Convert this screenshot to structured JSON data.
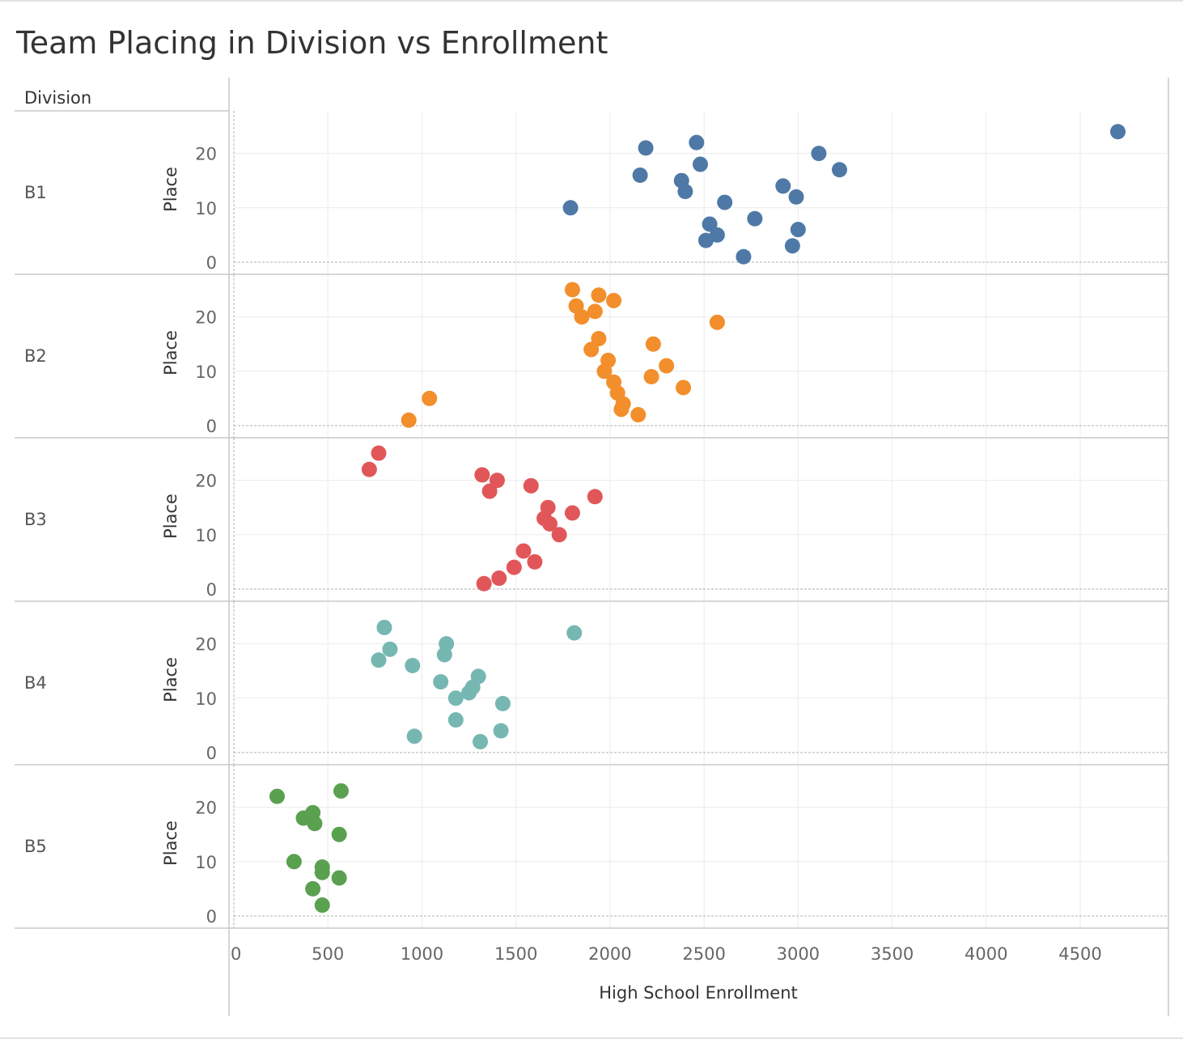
{
  "chart_data": {
    "type": "scatter",
    "title": "Team Placing in Division vs Enrollment",
    "row_header": "Division",
    "xlabel": "High School Enrollment",
    "ylabel": "Place",
    "xlim": [
      0,
      4950
    ],
    "ylim": [
      0,
      26
    ],
    "x_ticks": [
      "0",
      "500",
      "1000",
      "1500",
      "2000",
      "2500",
      "3000",
      "3500",
      "4000",
      "4500"
    ],
    "y_ticks": [
      "0",
      "10",
      "20"
    ],
    "grid": true,
    "panels": [
      {
        "division": "B1",
        "color": "#4e79a7",
        "points": [
          [
            1790,
            10
          ],
          [
            2160,
            16
          ],
          [
            2190,
            21
          ],
          [
            2380,
            15
          ],
          [
            2400,
            13
          ],
          [
            2460,
            22
          ],
          [
            2480,
            18
          ],
          [
            2510,
            4
          ],
          [
            2530,
            7
          ],
          [
            2570,
            5
          ],
          [
            2610,
            11
          ],
          [
            2710,
            1
          ],
          [
            2770,
            8
          ],
          [
            2920,
            14
          ],
          [
            2970,
            3
          ],
          [
            2990,
            12
          ],
          [
            3000,
            6
          ],
          [
            3110,
            20
          ],
          [
            3220,
            17
          ],
          [
            4700,
            24
          ]
        ]
      },
      {
        "division": "B2",
        "color": "#f28e2b",
        "points": [
          [
            930,
            1
          ],
          [
            1040,
            5
          ],
          [
            1800,
            25
          ],
          [
            1820,
            22
          ],
          [
            1850,
            20
          ],
          [
            1900,
            14
          ],
          [
            1920,
            21
          ],
          [
            1940,
            24
          ],
          [
            1940,
            16
          ],
          [
            1970,
            10
          ],
          [
            1990,
            12
          ],
          [
            2020,
            23
          ],
          [
            2020,
            8
          ],
          [
            2040,
            6
          ],
          [
            2060,
            3
          ],
          [
            2070,
            4
          ],
          [
            2150,
            2
          ],
          [
            2220,
            9
          ],
          [
            2230,
            15
          ],
          [
            2300,
            11
          ],
          [
            2390,
            7
          ],
          [
            2570,
            19
          ]
        ]
      },
      {
        "division": "B3",
        "color": "#e15759",
        "points": [
          [
            720,
            22
          ],
          [
            770,
            25
          ],
          [
            1320,
            21
          ],
          [
            1330,
            1
          ],
          [
            1360,
            18
          ],
          [
            1400,
            20
          ],
          [
            1410,
            2
          ],
          [
            1490,
            4
          ],
          [
            1540,
            7
          ],
          [
            1580,
            19
          ],
          [
            1600,
            5
          ],
          [
            1650,
            13
          ],
          [
            1670,
            15
          ],
          [
            1680,
            12
          ],
          [
            1730,
            10
          ],
          [
            1800,
            14
          ],
          [
            1920,
            17
          ]
        ]
      },
      {
        "division": "B4",
        "color": "#76b7b2",
        "points": [
          [
            770,
            17
          ],
          [
            800,
            23
          ],
          [
            830,
            19
          ],
          [
            950,
            16
          ],
          [
            960,
            3
          ],
          [
            1100,
            13
          ],
          [
            1120,
            18
          ],
          [
            1130,
            20
          ],
          [
            1180,
            10
          ],
          [
            1180,
            6
          ],
          [
            1250,
            11
          ],
          [
            1270,
            12
          ],
          [
            1300,
            14
          ],
          [
            1310,
            2
          ],
          [
            1420,
            4
          ],
          [
            1430,
            9
          ],
          [
            1810,
            22
          ]
        ]
      },
      {
        "division": "B5",
        "color": "#59a14f",
        "points": [
          [
            230,
            22
          ],
          [
            320,
            10
          ],
          [
            370,
            18
          ],
          [
            420,
            19
          ],
          [
            420,
            5
          ],
          [
            430,
            17
          ],
          [
            470,
            9
          ],
          [
            470,
            8
          ],
          [
            470,
            2
          ],
          [
            560,
            15
          ],
          [
            560,
            7
          ],
          [
            570,
            23
          ]
        ]
      }
    ]
  }
}
